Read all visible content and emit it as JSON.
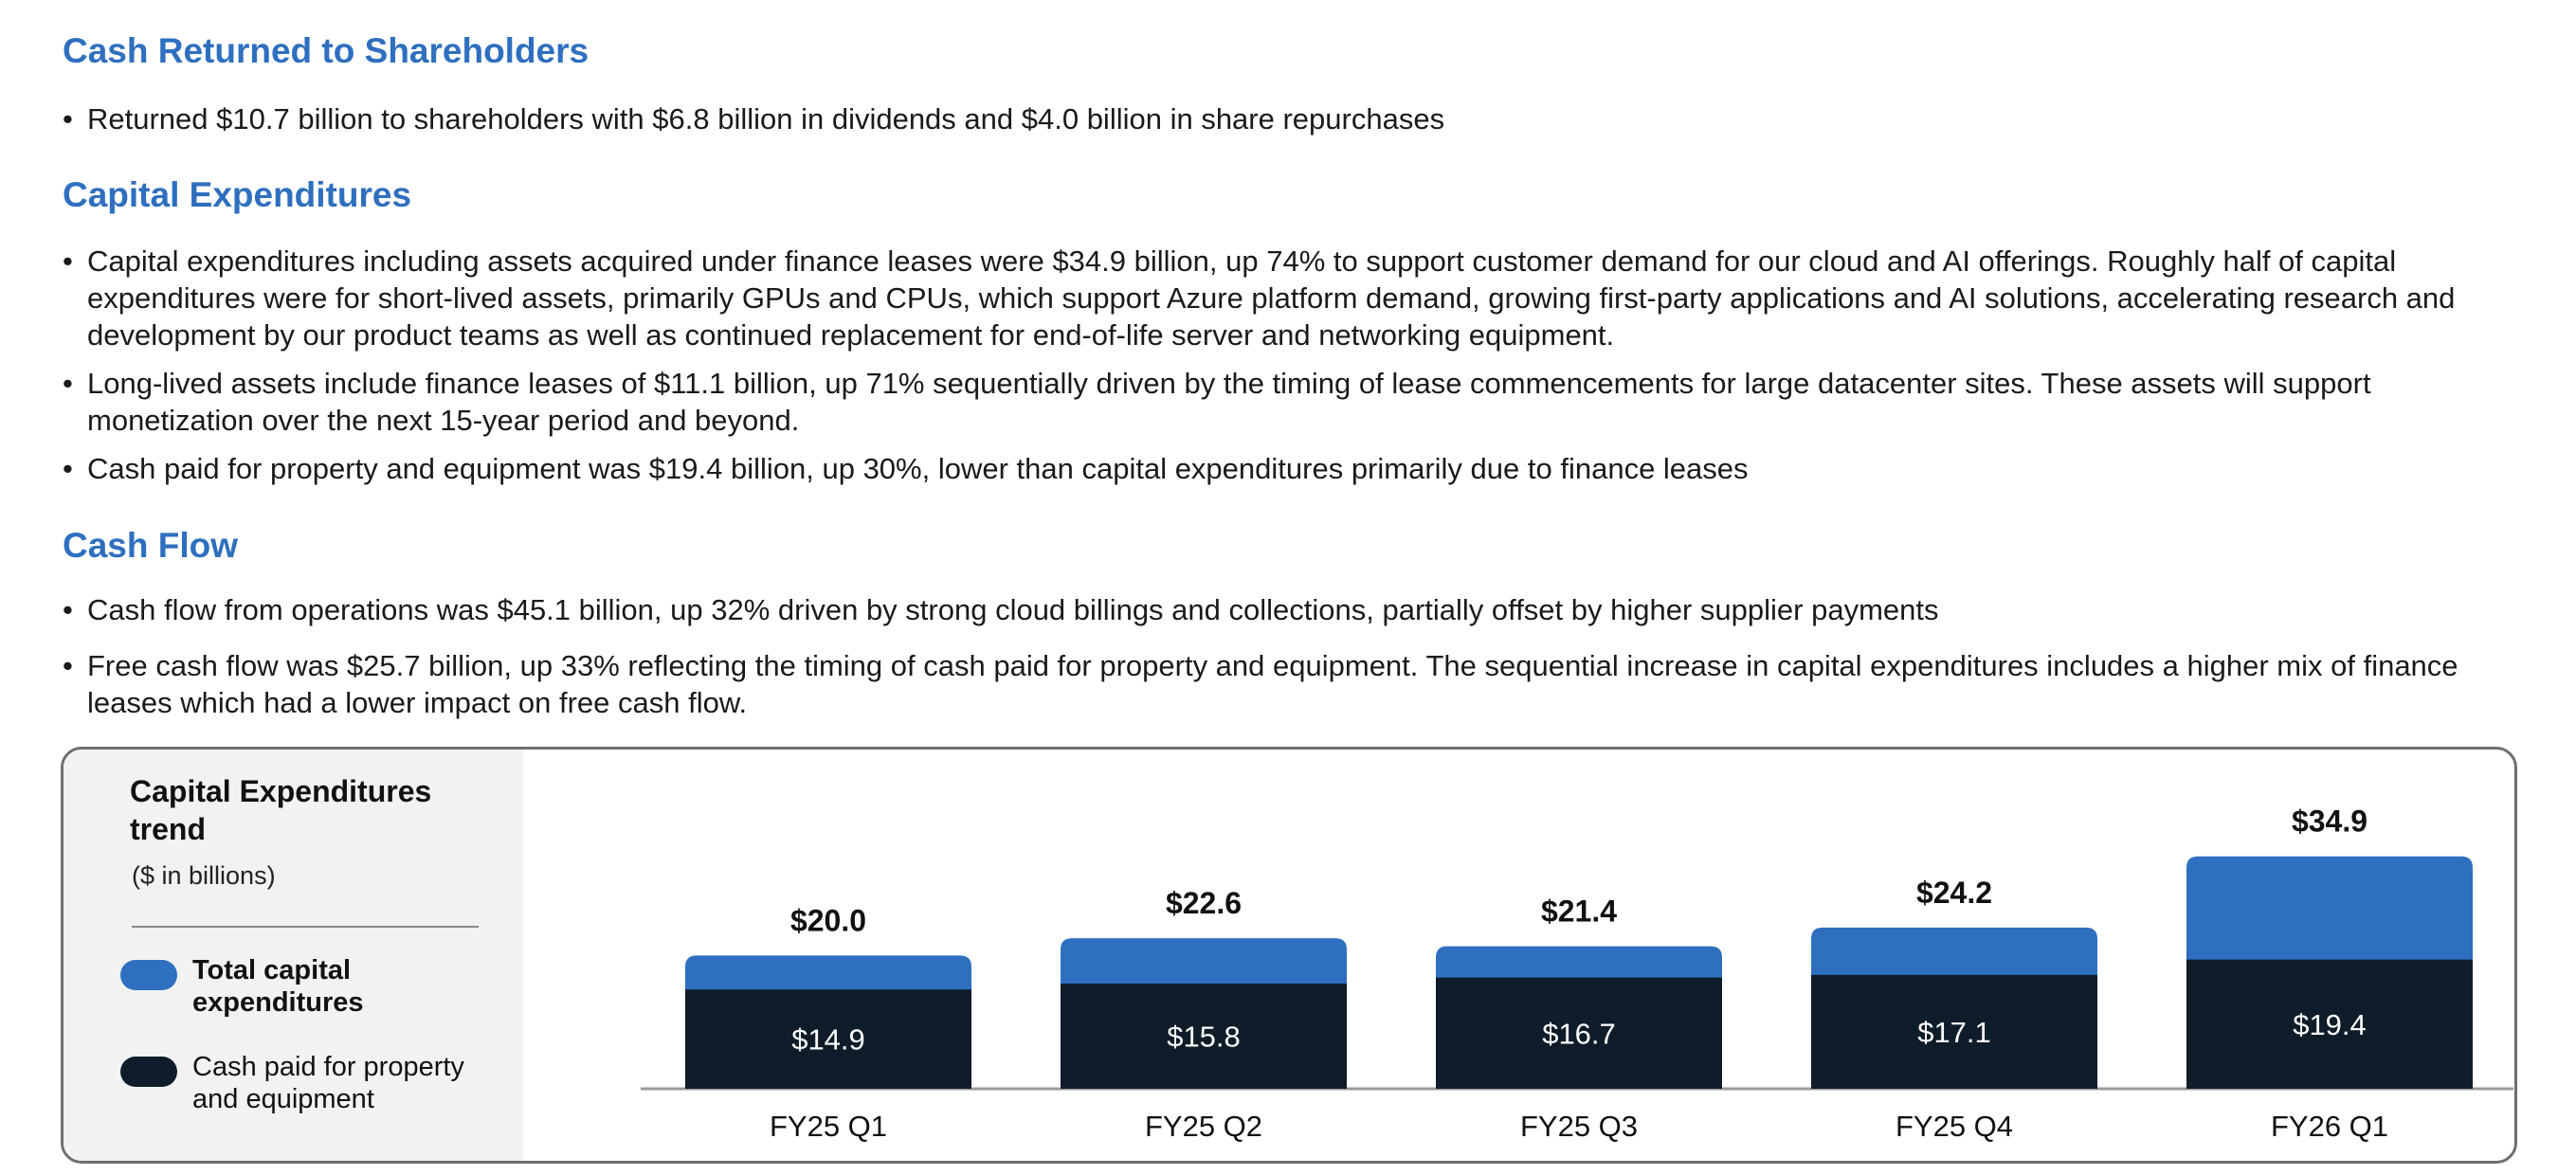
{
  "sections": {
    "cash_returned": {
      "title": "Cash Returned to Shareholders",
      "bullets": [
        "Returned $10.7 billion to shareholders with $6.8 billion in dividends and $4.0 billion in share repurchases"
      ]
    },
    "capex": {
      "title": "Capital Expenditures",
      "bullets": [
        "Capital expenditures including assets acquired under finance leases were $34.9 billion, up 74% to support customer demand for our cloud and AI offerings. Roughly half of capital expenditures were for short-lived assets, primarily GPUs and CPUs, which support Azure platform demand, growing first-party applications and AI solutions, accelerating research and development by our product teams as well as continued replacement for end-of-life server and networking equipment.",
        "Long-lived assets include finance leases of $11.1 billion, up 71% sequentially driven by the timing of lease commencements for large datacenter sites. These assets will support monetization over the next 15-year period and beyond.",
        "Cash paid for property and equipment was $19.4 billion, up 30%, lower than capital expenditures primarily due to finance leases"
      ]
    },
    "cash_flow": {
      "title": "Cash Flow",
      "bullets": [
        "Cash flow from operations was $45.1 billion, up 32% driven by strong cloud billings and collections, partially offset by higher supplier payments",
        "Free cash flow was $25.7 billion, up 33% reflecting the timing of cash paid for property and equipment. The sequential increase in capital expenditures includes a higher mix of finance leases which had a lower impact on free cash flow."
      ]
    }
  },
  "colors": {
    "heading": "#2e6fbf",
    "total_capex": "#2e6fbf",
    "cash_paid": "#0f1c2a",
    "legend_bg": "#f2f2f2",
    "border": "#6e6e6e"
  },
  "chart_data": {
    "type": "bar",
    "title": "Capital Expenditures trend",
    "unit": "($ in billions)",
    "categories": [
      "FY25 Q1",
      "FY25 Q2",
      "FY25 Q3",
      "FY25 Q4",
      "FY26 Q1"
    ],
    "series": [
      {
        "name": "Total capital expenditures",
        "values": [
          20.0,
          22.6,
          21.4,
          24.2,
          34.9
        ],
        "labels": [
          "$20.0",
          "$22.6",
          "$21.4",
          "$24.2",
          "$34.9"
        ]
      },
      {
        "name": "Cash paid for property and equipment",
        "values": [
          14.9,
          15.8,
          16.7,
          17.1,
          19.4
        ],
        "labels": [
          "$14.9",
          "$15.8",
          "$16.7",
          "$17.1",
          "$19.4"
        ]
      }
    ],
    "legend": "left",
    "grid": false,
    "ylim": [
      0,
      35
    ]
  }
}
